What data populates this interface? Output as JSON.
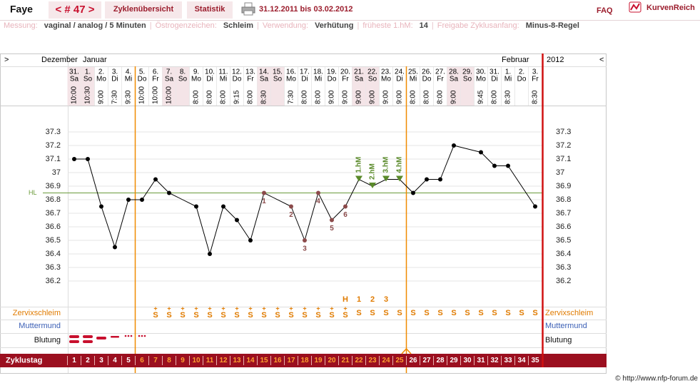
{
  "header": {
    "user": "Faye",
    "cycle_nav": "< # 47 >",
    "tabs": [
      "Zyklenübersicht",
      "Statistik"
    ],
    "date_range": "31.12.2011 bis 03.02.2012",
    "faq": "FAQ",
    "logo": "KurvenReich"
  },
  "settings": [
    {
      "label": "Messung:",
      "value": "vaginal / analog / 5 Minuten"
    },
    {
      "label": "Östrogenzeichen:",
      "value": "Schleim"
    },
    {
      "label": "Verwendung:",
      "value": "Verhütung"
    },
    {
      "label": "früheste 1.hM:",
      "value": "14"
    },
    {
      "label": "Freigabe Zyklusanfang:",
      "value": "Minus-8-Regel"
    }
  ],
  "settings_separator": "|",
  "nav": {
    "left": ">",
    "right": "<"
  },
  "months": [
    "Dezember",
    "Januar",
    "Februar"
  ],
  "year": "2012",
  "days": {
    "dates": [
      "31.",
      "1.",
      "2.",
      "3.",
      "4.",
      "5.",
      "6.",
      "7.",
      "8.",
      "9.",
      "10.",
      "11.",
      "12.",
      "13.",
      "14.",
      "15.",
      "16.",
      "17.",
      "18.",
      "19.",
      "20.",
      "21.",
      "22.",
      "23.",
      "24.",
      "25.",
      "26.",
      "27.",
      "28.",
      "29.",
      "30.",
      "31.",
      "1.",
      "2.",
      "3."
    ],
    "weekdays": [
      "Sa",
      "So",
      "Mo",
      "Di",
      "Mi",
      "Do",
      "Fr",
      "Sa",
      "So",
      "Mo",
      "Di",
      "Mi",
      "Do",
      "Fr",
      "Sa",
      "So",
      "Mo",
      "Di",
      "Mi",
      "Do",
      "Fr",
      "Sa",
      "So",
      "Mo",
      "Di",
      "Mi",
      "Do",
      "Fr",
      "Sa",
      "So",
      "Mo",
      "Di",
      "Mi",
      "Do",
      "Fr"
    ],
    "times": [
      "10:00",
      "10:30",
      "9:00",
      "7:30",
      "9:30",
      "10:00",
      "10:00",
      "10:00",
      null,
      "8:00",
      "8:00",
      "8:00",
      "9:15",
      "8:00",
      "8:30",
      null,
      "7:30",
      "8:00",
      "8:00",
      "9:00",
      "9:00",
      "9:00",
      "9:00",
      "9:00",
      "9:00",
      "8:00",
      "8:00",
      "8:00",
      "9:00",
      null,
      "9:45",
      "8:00",
      "8:30",
      null,
      "8:30"
    ]
  },
  "chart_data": {
    "type": "line",
    "categories": [
      1,
      2,
      3,
      4,
      5,
      6,
      7,
      8,
      9,
      10,
      11,
      12,
      13,
      14,
      15,
      16,
      17,
      18,
      19,
      20,
      21,
      22,
      23,
      24,
      25,
      26,
      27,
      28,
      29,
      30,
      31,
      32,
      33,
      34,
      35
    ],
    "values": [
      37.1,
      37.1,
      36.75,
      36.45,
      36.8,
      36.8,
      36.95,
      36.85,
      null,
      36.75,
      36.4,
      36.75,
      36.65,
      36.5,
      36.85,
      null,
      36.75,
      36.5,
      36.85,
      36.65,
      36.75,
      36.95,
      36.9,
      36.95,
      36.95,
      36.85,
      36.95,
      36.95,
      37.2,
      null,
      37.15,
      37.05,
      37.05,
      null,
      36.75
    ],
    "point_labels": [
      null,
      null,
      null,
      null,
      null,
      null,
      null,
      null,
      null,
      null,
      null,
      null,
      null,
      null,
      "1",
      null,
      "2",
      "3",
      "4",
      "5",
      "6",
      null,
      null,
      null,
      null,
      null,
      null,
      null,
      null,
      null,
      null,
      null,
      null,
      null,
      null
    ],
    "hm_labels": [
      null,
      null,
      null,
      null,
      null,
      null,
      null,
      null,
      null,
      null,
      null,
      null,
      null,
      null,
      null,
      null,
      null,
      null,
      null,
      null,
      null,
      "1.hM",
      "2.hM",
      "3.hM",
      "4.hM",
      null,
      null,
      null,
      null,
      null,
      null,
      null,
      null,
      null,
      null
    ],
    "color": "#000000",
    "label_color": "#8b4a4a",
    "hm_color": "#5a8a2a",
    "ylim": [
      36.0,
      37.5
    ],
    "yticks": [
      37.3,
      37.2,
      37.1,
      37,
      36.9,
      36.8,
      36.7,
      36.6,
      36.5,
      36.4,
      36.3,
      36.2
    ],
    "grid": true,
    "hl": 36.85,
    "hl_label": "HL"
  },
  "rows": {
    "peak": [
      null,
      null,
      null,
      null,
      null,
      null,
      null,
      null,
      null,
      null,
      null,
      null,
      null,
      null,
      null,
      null,
      null,
      null,
      null,
      null,
      "H",
      "1",
      "2",
      "3",
      null,
      null,
      null,
      null,
      null,
      null,
      null,
      null,
      null,
      null,
      null
    ],
    "cervix_plus": [
      null,
      null,
      null,
      null,
      null,
      null,
      "+",
      "+",
      "+",
      "+",
      "+",
      "+",
      "+",
      "+",
      "+",
      "+",
      "+",
      "+",
      "+",
      "+",
      "+",
      null,
      null,
      null,
      null,
      null,
      null,
      null,
      null,
      null,
      null,
      null,
      null,
      null,
      null
    ],
    "cervix": [
      null,
      null,
      null,
      null,
      null,
      null,
      "S",
      "S",
      "S",
      "S",
      "S",
      "S",
      "S",
      "S",
      "S",
      "S",
      "S",
      "S",
      "S",
      "S",
      "S",
      "S",
      "S",
      "S",
      "S",
      "S",
      "S",
      "S",
      "S",
      "S",
      "S",
      "S",
      "S",
      "S",
      "S"
    ],
    "labels": {
      "cervix": "Zervixschleim",
      "cervix_os": "Muttermund",
      "bleeding": "Blutung",
      "cycle_day": "Zyklustag"
    }
  },
  "footer": "© http://www.nfp-forum.de"
}
